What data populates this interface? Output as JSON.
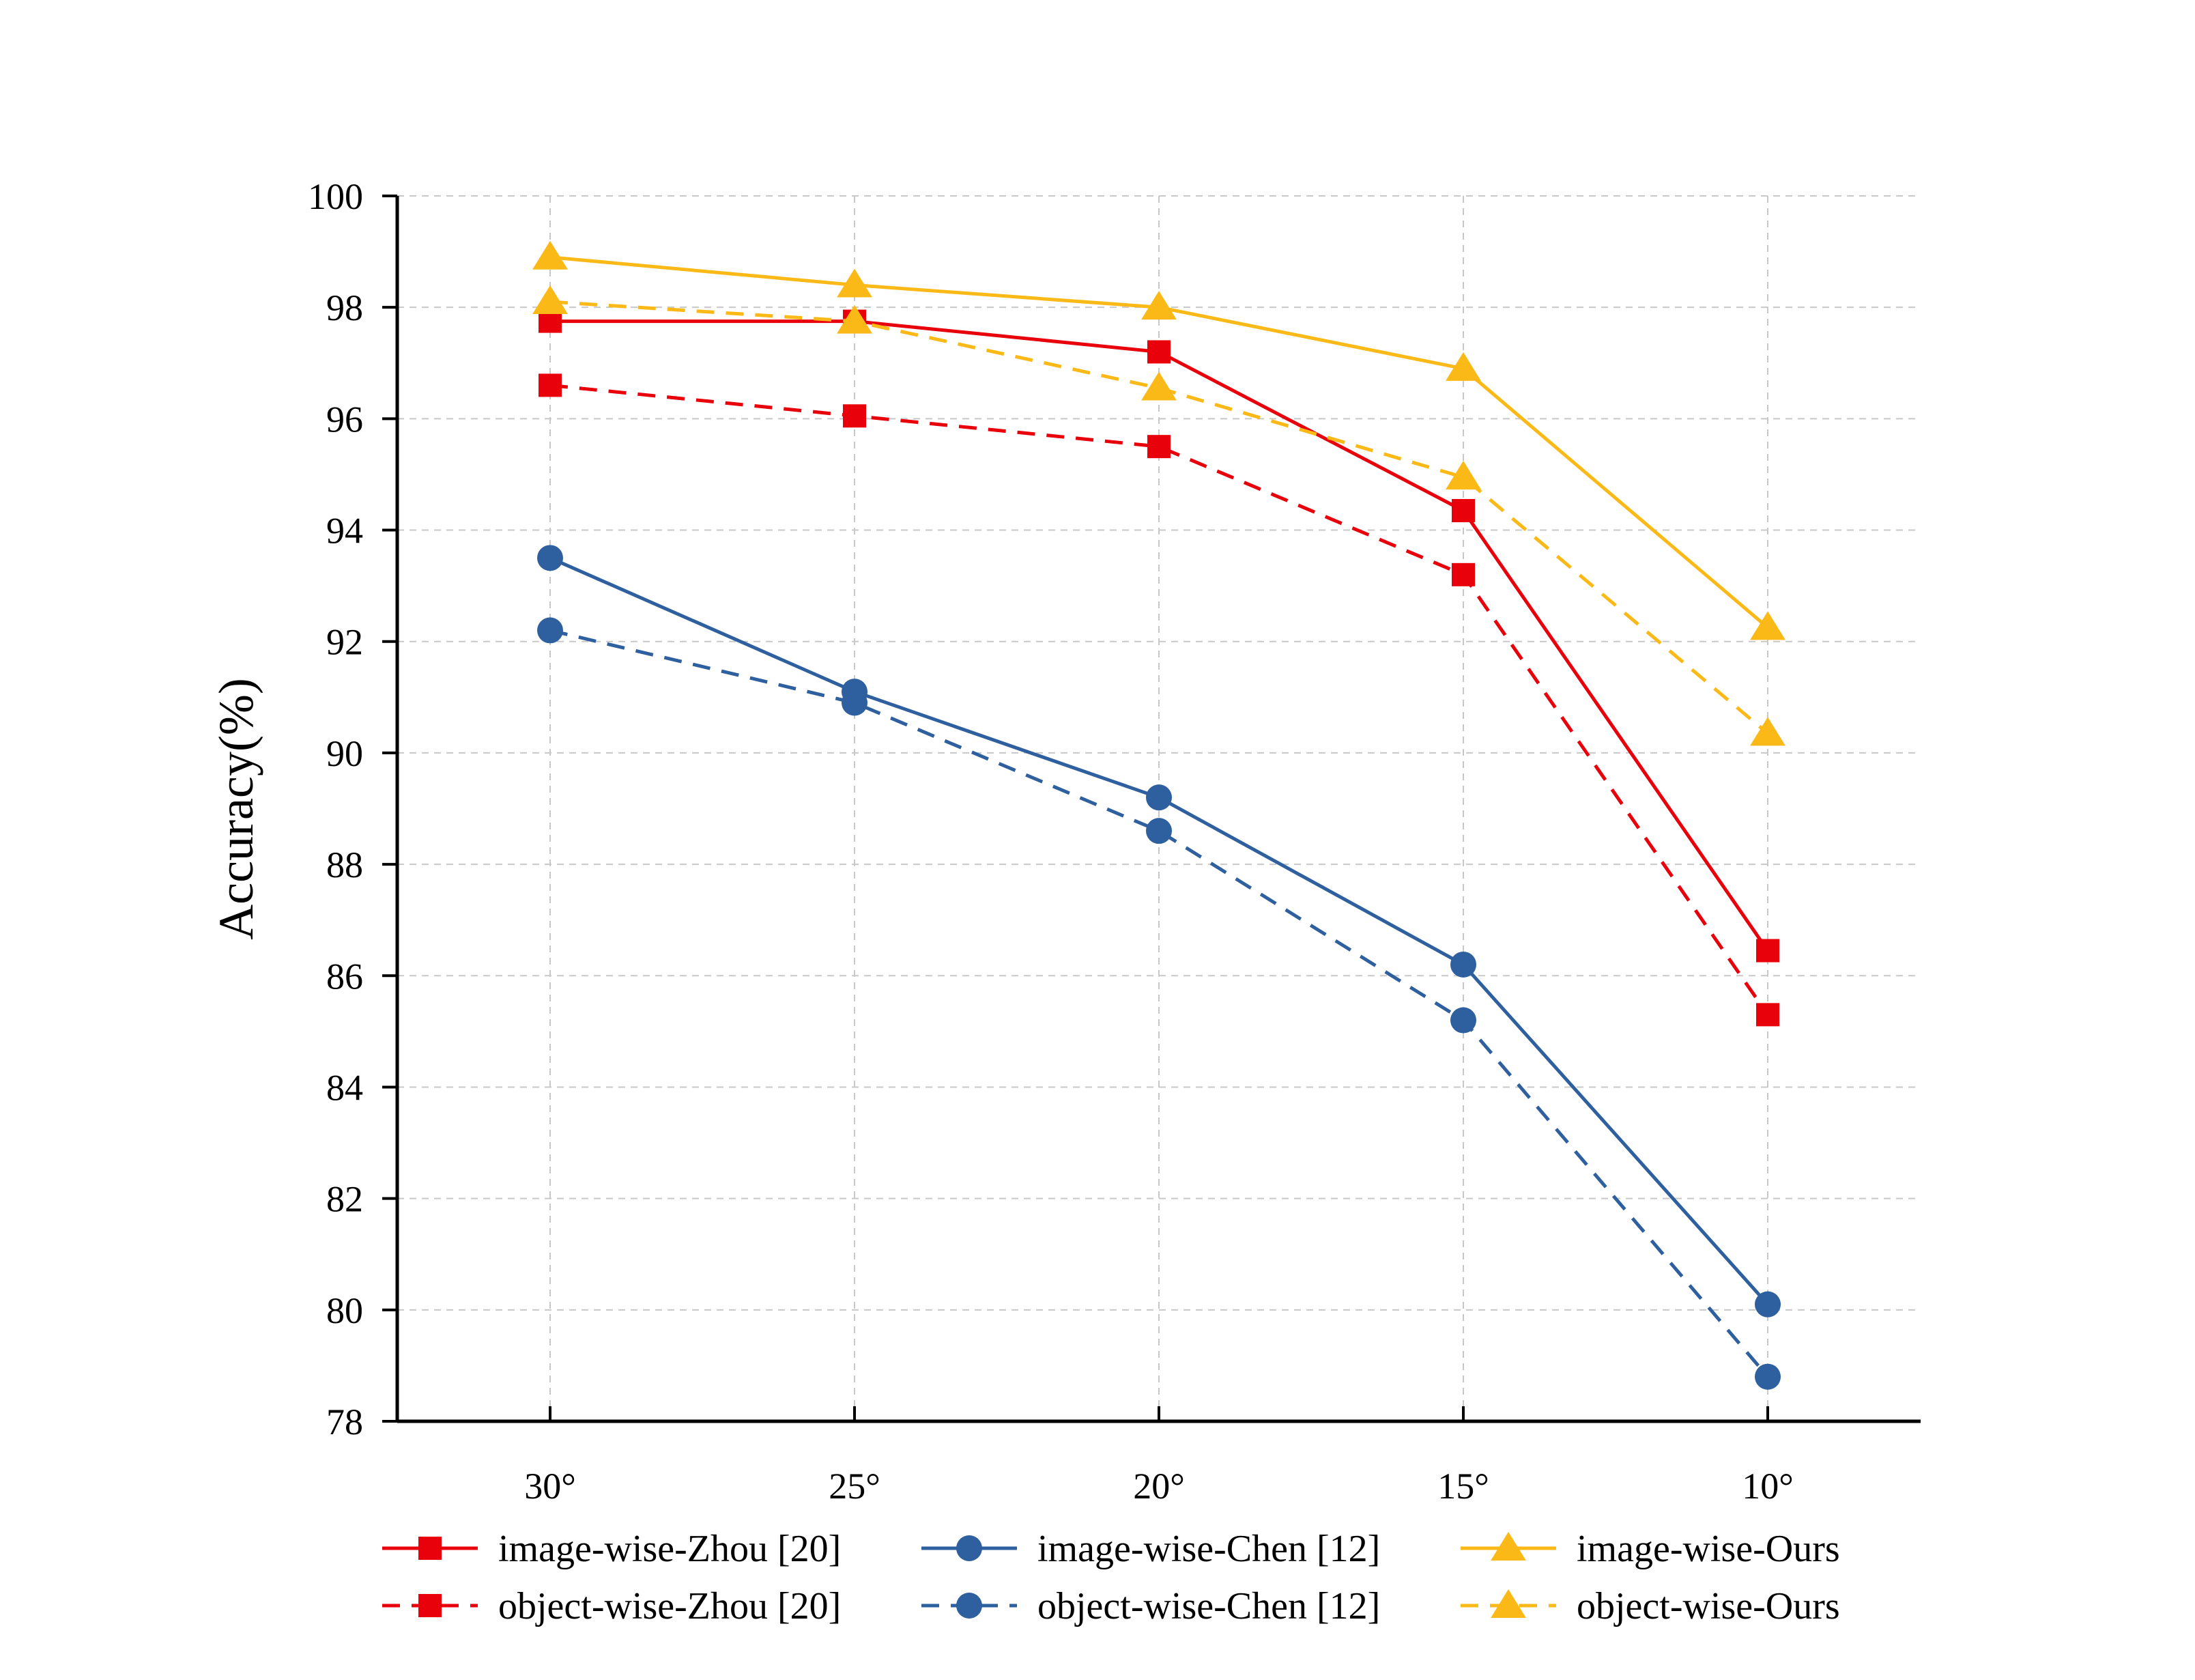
{
  "chart_data": {
    "type": "line",
    "title": "",
    "xlabel": "",
    "ylabel": "Accuracy(%)",
    "categories": [
      "30°",
      "25°",
      "20°",
      "15°",
      "10°"
    ],
    "ylim": [
      78,
      100
    ],
    "yticks": [
      78,
      80,
      82,
      84,
      86,
      88,
      90,
      92,
      94,
      96,
      98,
      100
    ],
    "grid": true,
    "legend_position": "bottom",
    "series": [
      {
        "name": "image-wise-Zhou [20]",
        "values": [
          97.75,
          97.75,
          97.2,
          94.35,
          86.45
        ],
        "color": "#e8000b",
        "marker": "square",
        "dashed": false
      },
      {
        "name": "image-wise-Chen [12]",
        "values": [
          93.5,
          91.1,
          89.2,
          86.2,
          80.1
        ],
        "color": "#2e5f9e",
        "marker": "circle",
        "dashed": false
      },
      {
        "name": "image-wise-Ours",
        "values": [
          98.9,
          98.4,
          98.0,
          96.9,
          92.25
        ],
        "color": "#fbb917",
        "marker": "triangle",
        "dashed": false
      },
      {
        "name": "object-wise-Zhou [20]",
        "values": [
          96.6,
          96.05,
          95.5,
          93.2,
          85.3
        ],
        "color": "#e8000b",
        "marker": "square",
        "dashed": true
      },
      {
        "name": "object-wise-Chen [12]",
        "values": [
          92.2,
          90.9,
          88.6,
          85.2,
          78.8
        ],
        "color": "#2e5f9e",
        "marker": "circle",
        "dashed": true
      },
      {
        "name": "object-wise-Ours",
        "values": [
          98.1,
          97.75,
          96.55,
          94.95,
          90.35
        ],
        "color": "#fbb917",
        "marker": "triangle",
        "dashed": true
      }
    ]
  }
}
